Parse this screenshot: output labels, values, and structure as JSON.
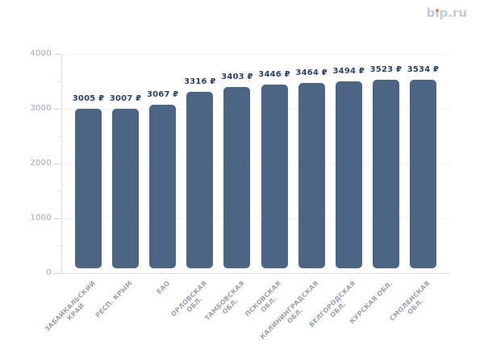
{
  "site": {
    "logo_text": "bip.ru",
    "logo_prefix": "b",
    "logo_i": "ı",
    "logo_suffix": "p.ru"
  },
  "colors": {
    "bar": "#4d6585",
    "value_label": "#2e4269",
    "axis_label": "#a2a8b5",
    "category_label": "#99a0ae",
    "gridline": "#e2e5ea",
    "axis_line": "#d9dce3",
    "tick": "#c9cdd6",
    "tick_minor": "#d6dae1",
    "logo": "#c5cad7",
    "logo_dot": "#ee8168"
  },
  "chart_data": {
    "type": "bar",
    "categories": [
      "ЗАБАЙКАЛЬСКИЙ КРАЙ",
      "РЕСП. КРЫМ",
      "ЕАО",
      "ОРЛОВСКАЯ ОБЛ.",
      "ТАМБОВСКАЯ ОБЛ.",
      "ПСКОВСКАЯ ОБЛ.",
      "КАЛИНИНГРАДСКАЯ ОБЛ.",
      "БЕЛГОРОДСКАЯ ОБЛ.",
      "КУРСКАЯ ОБЛ.",
      "СМОЛЕНСКАЯ ОБЛ."
    ],
    "category_lines": [
      [
        "ЗАБАЙКАЛЬСКИЙ",
        "КРАЙ"
      ],
      [
        "РЕСП. КРЫМ"
      ],
      [
        "ЕАО"
      ],
      [
        "ОРЛОВСКАЯ",
        "ОБЛ."
      ],
      [
        "ТАМБОВСКАЯ",
        "ОБЛ."
      ],
      [
        "ПСКОВСКАЯ",
        "ОБЛ."
      ],
      [
        "КАЛИНИНГРАДСКАЯ",
        "ОБЛ."
      ],
      [
        "БЕЛГОРОДСКАЯ",
        "ОБЛ."
      ],
      [
        "КУРСКАЯ ОБЛ."
      ],
      [
        "СМОЛЕНСКАЯ",
        "ОБЛ."
      ]
    ],
    "values": [
      3005,
      3007,
      3067,
      3316,
      3403,
      3446,
      3464,
      3494,
      3523,
      3534
    ],
    "value_labels": [
      "3005 ₽",
      "3007 ₽",
      "3067 ₽",
      "3316 ₽",
      "3403 ₽",
      "3446 ₽",
      "3464 ₽",
      "3494 ₽",
      "3523 ₽",
      "3534 ₽"
    ],
    "xlabel": "",
    "ylabel": "",
    "ylim": [
      0,
      4000
    ],
    "yticks": {
      "major": [
        0,
        1000,
        2000,
        3000,
        4000
      ],
      "labels": [
        "0",
        "1000",
        "2000",
        "3000",
        "4000"
      ],
      "minor": [
        500,
        1500,
        2500,
        3500
      ]
    },
    "grid": "horizontal dotted at major ticks",
    "legend": "none"
  }
}
